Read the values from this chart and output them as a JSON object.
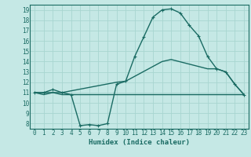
{
  "xlabel": "Humidex (Indice chaleur)",
  "bg_color": "#c5e8e5",
  "grid_color": "#a8d5d0",
  "line_color": "#1a6b63",
  "xlim": [
    -0.5,
    23.5
  ],
  "ylim": [
    7.5,
    19.5
  ],
  "xticks": [
    0,
    1,
    2,
    3,
    4,
    5,
    6,
    7,
    8,
    9,
    10,
    11,
    12,
    13,
    14,
    15,
    16,
    17,
    18,
    19,
    20,
    21,
    22,
    23
  ],
  "yticks": [
    8,
    9,
    10,
    11,
    12,
    13,
    14,
    15,
    16,
    17,
    18,
    19
  ],
  "line1_x": [
    0,
    1,
    2,
    3,
    4,
    5,
    6,
    7,
    8,
    9,
    10,
    11,
    12,
    13,
    14,
    15,
    16,
    17,
    18,
    19,
    20,
    21,
    22,
    23
  ],
  "line1_y": [
    11.0,
    11.0,
    11.3,
    11.0,
    10.8,
    7.8,
    7.9,
    7.8,
    8.0,
    11.8,
    12.1,
    14.5,
    16.4,
    18.3,
    19.0,
    19.1,
    18.7,
    17.5,
    16.5,
    14.5,
    13.3,
    13.0,
    11.8,
    10.8
  ],
  "line2_x": [
    0,
    1,
    2,
    3,
    23
  ],
  "line2_y": [
    11.0,
    10.8,
    11.0,
    10.8,
    10.8
  ],
  "line3_x": [
    0,
    3,
    9,
    10,
    14,
    15,
    19,
    20,
    21,
    22,
    23
  ],
  "line3_y": [
    11.0,
    11.0,
    12.0,
    12.1,
    14.0,
    14.2,
    13.3,
    13.3,
    13.0,
    11.8,
    10.8
  ]
}
